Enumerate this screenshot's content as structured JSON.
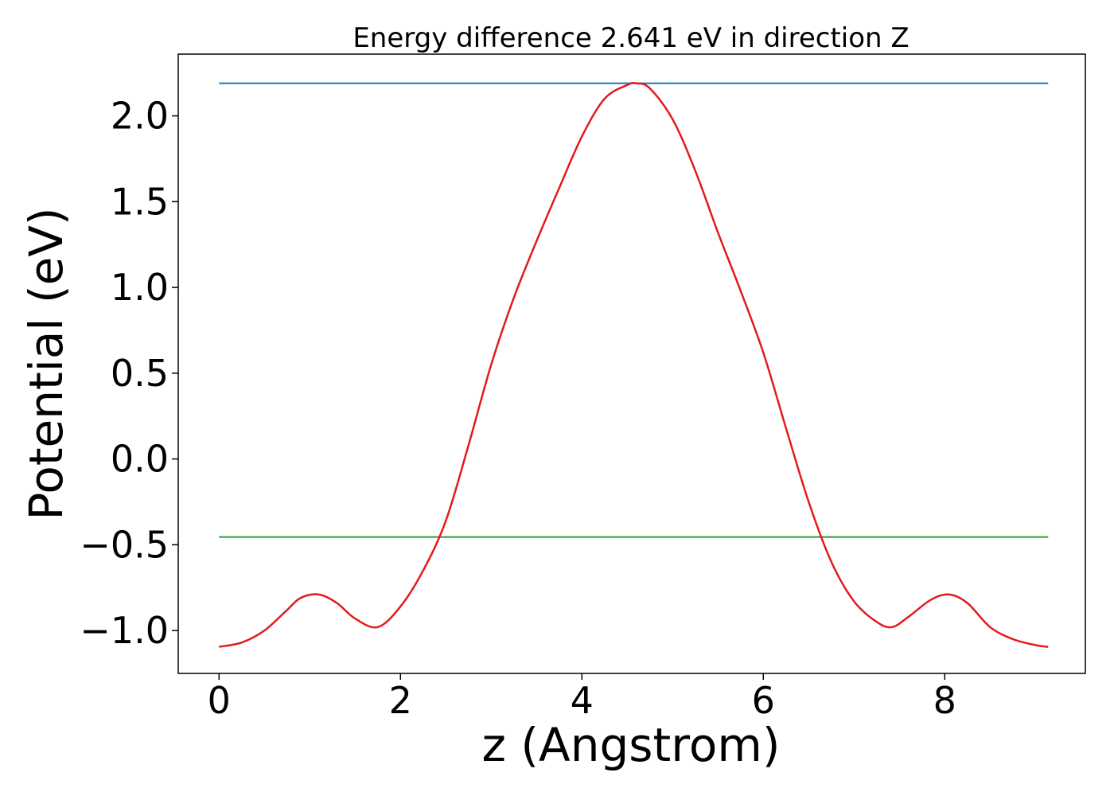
{
  "chart_data": {
    "type": "line",
    "title": "Energy difference 2.641 eV in direction Z",
    "xlabel": "z (Angstrom)",
    "ylabel": "Potential (eV)",
    "xlim": [
      -0.45,
      9.55
    ],
    "ylim": [
      -1.25,
      2.36
    ],
    "xticks": [
      0,
      2,
      4,
      6,
      8
    ],
    "xtick_labels": [
      "0",
      "2",
      "4",
      "6",
      "8"
    ],
    "yticks": [
      -1.0,
      -0.5,
      0.0,
      0.5,
      1.0,
      1.5,
      2.0
    ],
    "ytick_labels": [
      "−1.0",
      "−0.5",
      "0.0",
      "0.5",
      "1.0",
      "1.5",
      "2.0"
    ],
    "grid": false,
    "series": [
      {
        "color": "#1f77b4",
        "x": [
          0,
          9.14
        ],
        "y": [
          2.19,
          2.19
        ]
      },
      {
        "color": "#2ca02c",
        "x": [
          0,
          9.14
        ],
        "y": [
          -0.455,
          -0.455
        ]
      },
      {
        "color": "#e31a1c",
        "x": [
          0,
          0.25,
          0.5,
          0.75,
          0.9,
          1.1,
          1.3,
          1.5,
          1.75,
          2.0,
          2.25,
          2.5,
          2.75,
          3.0,
          3.25,
          3.5,
          3.75,
          4.0,
          4.25,
          4.5,
          4.6,
          4.75,
          5.0,
          5.25,
          5.5,
          5.75,
          6.0,
          6.25,
          6.5,
          6.75,
          7.0,
          7.25,
          7.42,
          7.6,
          7.85,
          8.05,
          8.25,
          8.5,
          8.75,
          9.0,
          9.14
        ],
        "y": [
          -1.095,
          -1.07,
          -1.0,
          -0.88,
          -0.81,
          -0.79,
          -0.84,
          -0.93,
          -0.98,
          -0.86,
          -0.65,
          -0.36,
          0.08,
          0.55,
          0.94,
          1.27,
          1.58,
          1.88,
          2.1,
          2.18,
          2.19,
          2.16,
          1.98,
          1.68,
          1.32,
          0.98,
          0.62,
          0.18,
          -0.25,
          -0.6,
          -0.83,
          -0.95,
          -0.98,
          -0.92,
          -0.82,
          -0.79,
          -0.84,
          -0.98,
          -1.05,
          -1.085,
          -1.095
        ]
      }
    ]
  }
}
